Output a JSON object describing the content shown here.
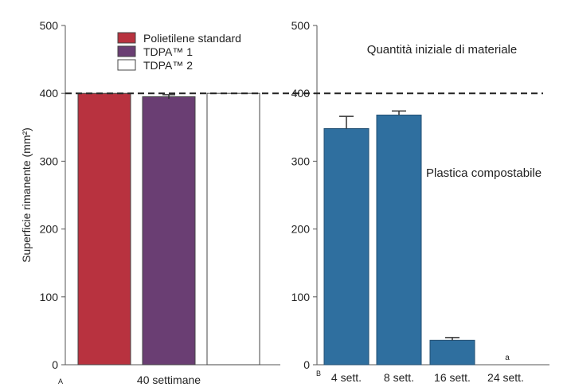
{
  "chart_data": [
    {
      "panel": "A",
      "type": "bar",
      "ylabel": "Superficie rimanente (mm²)",
      "ylim": [
        0,
        500
      ],
      "yticks": [
        "0",
        "100",
        "200",
        "300",
        "400",
        "500"
      ],
      "categories": [
        "Polietilene standard",
        "TDPA™ 1",
        "TDPA™ 2"
      ],
      "values": [
        400,
        395,
        400
      ],
      "errors": [
        0,
        3,
        0
      ],
      "colors": [
        "#b8323f",
        "#6a3e73",
        "#ffffff"
      ],
      "xlabel": "40 settimane",
      "legend": [
        "Polietilene standard",
        "TDPA™ 1",
        "TDPA™ 2"
      ],
      "legend_position": "top-center",
      "reference_line": {
        "value": 400,
        "style": "dashed"
      }
    },
    {
      "panel": "B",
      "type": "bar",
      "ylim": [
        0,
        500
      ],
      "yticks": [
        "0",
        "100",
        "200",
        "300",
        "400",
        "500"
      ],
      "categories": [
        "4 sett.",
        "8 sett.",
        "16 sett.",
        "24 sett."
      ],
      "values": [
        348,
        368,
        36,
        0
      ],
      "errors": [
        18,
        6,
        4,
        0
      ],
      "color": "#2f6f9f",
      "bar_labels": [
        "",
        "",
        "",
        "a"
      ],
      "series_label": "Plastica compostabile",
      "reference_line": {
        "value": 400,
        "style": "dashed",
        "label": "Quantità iniziale di materiale"
      }
    }
  ]
}
